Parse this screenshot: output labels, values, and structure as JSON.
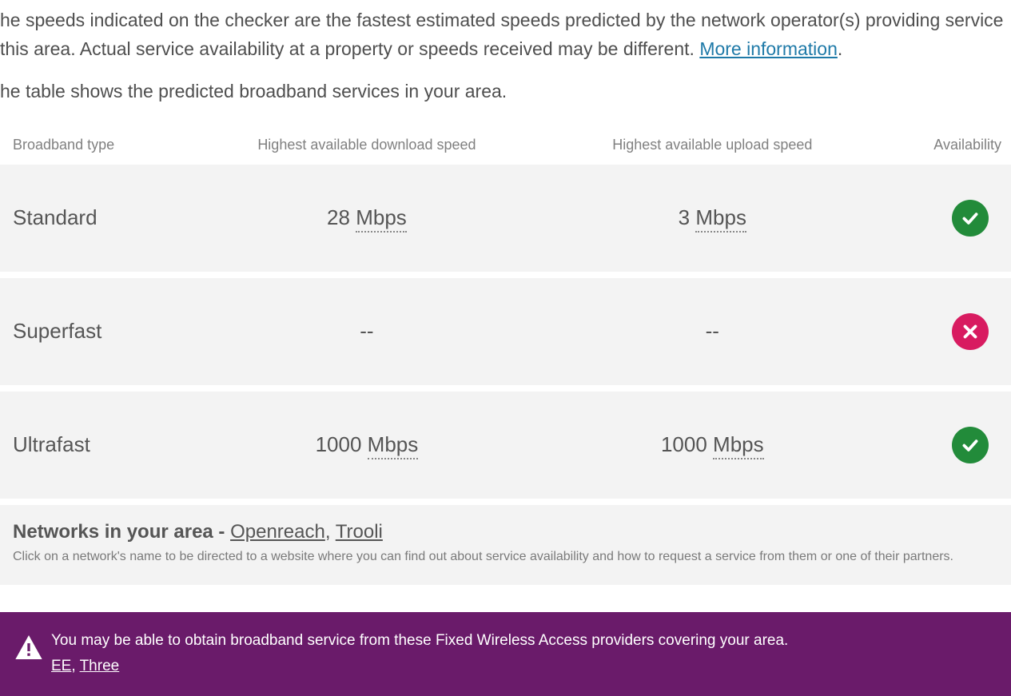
{
  "intro": {
    "text_before_link": "he speeds indicated on the checker are the fastest estimated speeds predicted by the network operator(s) providing service this area. Actual service availability at a property or speeds received may be different. ",
    "link_text": "More information",
    "text_after_link": "."
  },
  "intro2": "he table shows the predicted broadband services in your area.",
  "table": {
    "headers": {
      "type": "Broadband type",
      "download": "Highest available download speed",
      "upload": "Highest available upload speed",
      "availability": "Availability"
    },
    "rows": [
      {
        "type": "Standard",
        "download_val": "28",
        "download_unit": "Mbps",
        "upload_val": "3",
        "upload_unit": "Mbps",
        "available": true
      },
      {
        "type": "Superfast",
        "download_val": "--",
        "download_unit": "",
        "upload_val": "--",
        "upload_unit": "",
        "available": false
      },
      {
        "type": "Ultrafast",
        "download_val": "1000",
        "download_unit": "Mbps",
        "upload_val": "1000",
        "upload_unit": "Mbps",
        "available": true
      }
    ]
  },
  "networks": {
    "label": "Networks in your area - ",
    "links": [
      "Openreach",
      "Trooli"
    ],
    "sep": ", ",
    "sub": "Click on a network's name to be directed to a website where you can find out about service availability and how to request a service from them or one of their partners."
  },
  "banner": {
    "text": "You may be able to obtain broadband service from these Fixed Wireless Access providers covering your area.",
    "links": [
      "EE",
      "Three"
    ],
    "sep": ", "
  },
  "colors": {
    "row_bg": "#f3f3f3",
    "ok": "#228b3a",
    "no": "#d81b60",
    "banner_bg": "#6a1b6a",
    "link": "#1f7aa8",
    "text": "#555555",
    "muted": "#808080"
  }
}
